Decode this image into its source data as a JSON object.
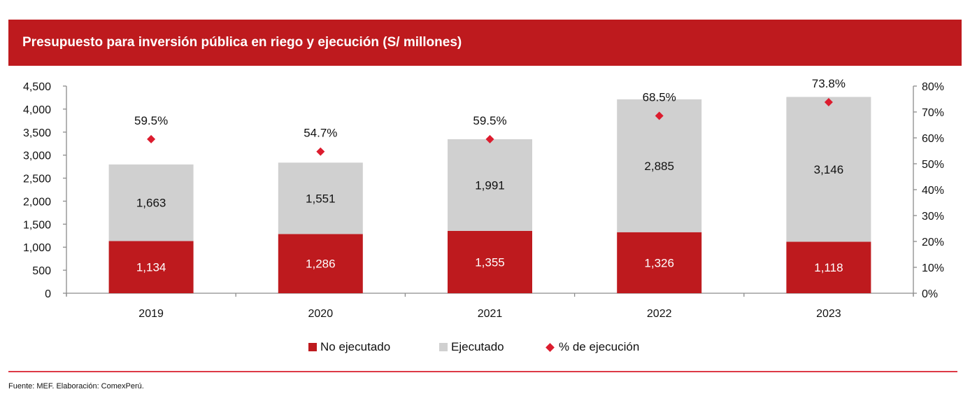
{
  "colors": {
    "header_bg": "#be1a1e",
    "no_ejecutado": "#be1a1e",
    "ejecutado": "#d0d0d0",
    "marker": "#dc1c2e",
    "axis": "#8c8c8c",
    "footer_rule": "#dd3a45"
  },
  "header": {
    "title": "Presupuesto para inversión pública en riego y ejecución (S/ millones)"
  },
  "chart_data": {
    "type": "bar",
    "stacked": true,
    "title": "Presupuesto para inversión pública en riego y ejecución (S/ millones)",
    "categories": [
      "2019",
      "2020",
      "2021",
      "2022",
      "2023"
    ],
    "series": [
      {
        "name": "No ejecutado",
        "axis": "left",
        "kind": "bar",
        "values": [
          1134,
          1286,
          1355,
          1326,
          1118
        ],
        "labels": [
          "1,134",
          "1,286",
          "1,355",
          "1,326",
          "1,118"
        ]
      },
      {
        "name": "Ejecutado",
        "axis": "left",
        "kind": "bar",
        "values": [
          1663,
          1551,
          1991,
          2885,
          3146
        ],
        "labels": [
          "1,663",
          "1,551",
          "1,991",
          "2,885",
          "3,146"
        ]
      },
      {
        "name": "% de ejecución",
        "axis": "right",
        "kind": "scatter",
        "marker": "diamond",
        "values": [
          59.5,
          54.7,
          59.5,
          68.5,
          73.8
        ],
        "labels": [
          "59.5%",
          "54.7%",
          "59.5%",
          "68.5%",
          "73.8%"
        ]
      }
    ],
    "left_axis": {
      "ylim": [
        0,
        4500
      ],
      "ticks": [
        0,
        500,
        1000,
        1500,
        2000,
        2500,
        3000,
        3500,
        4000,
        4500
      ],
      "tick_labels": [
        "0",
        "500",
        "1,000",
        "1,500",
        "2,000",
        "2,500",
        "3,000",
        "3,500",
        "4,000",
        "4,500"
      ]
    },
    "right_axis": {
      "ylim": [
        0,
        80
      ],
      "ticks": [
        0,
        10,
        20,
        30,
        40,
        50,
        60,
        70,
        80
      ],
      "tick_labels": [
        "0%",
        "10%",
        "20%",
        "30%",
        "40%",
        "50%",
        "60%",
        "70%",
        "80%"
      ]
    },
    "xlabel": "",
    "ylabel": "",
    "grid": false,
    "legend_position": "bottom"
  },
  "legend": {
    "items": [
      {
        "label": "No ejecutado"
      },
      {
        "label": "Ejecutado"
      },
      {
        "label": "% de ejecución"
      }
    ]
  },
  "footer": {
    "source": "Fuente: MEF. Elaboración: ComexPerú."
  }
}
